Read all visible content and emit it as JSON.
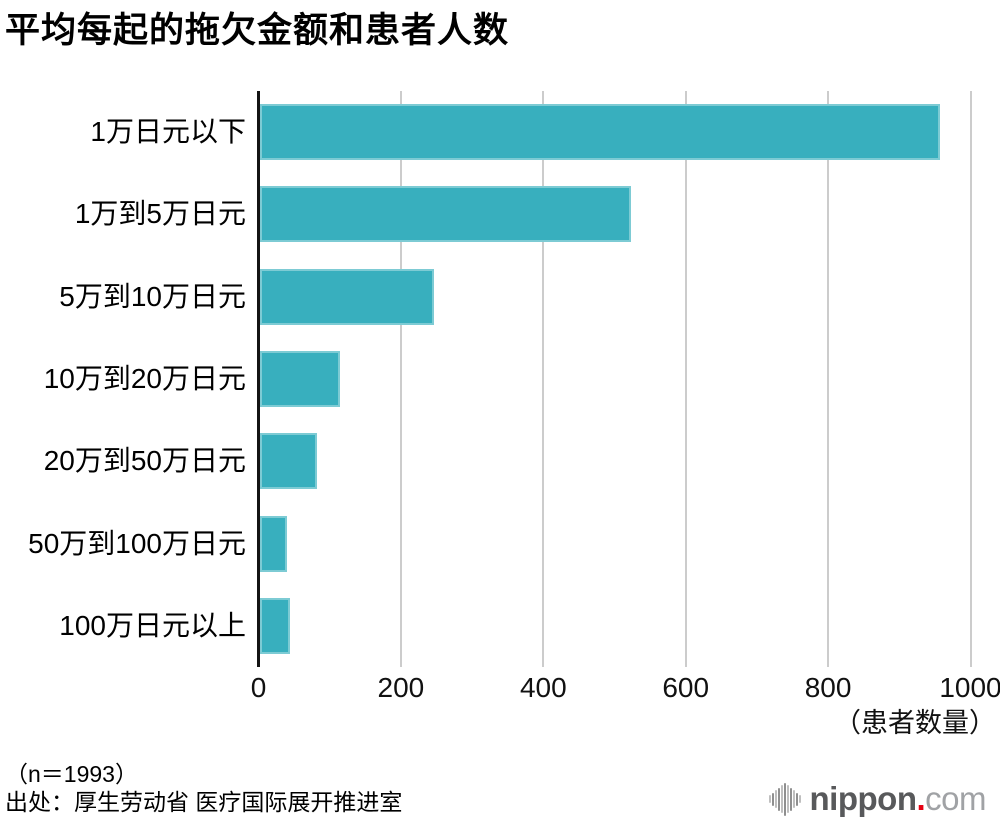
{
  "title": "平均每起的拖欠金额和患者人数",
  "chart_data": {
    "type": "bar",
    "orientation": "horizontal",
    "title": "平均每起的拖欠金额和患者人数",
    "categories": [
      "1万日元以下",
      "1万到5万日元",
      "5万到10万日元",
      "10万到20万日元",
      "20万到50万日元",
      "50万到100万日元",
      "100万日元以上"
    ],
    "values": [
      955,
      521,
      244,
      113,
      80,
      38,
      42
    ],
    "xlabel": "（患者数量）",
    "xlim": [
      0,
      1000
    ],
    "xticks": [
      0,
      200,
      400,
      600,
      800,
      1000
    ],
    "xtick_labels": [
      "0",
      "200",
      "400",
      "600",
      "800",
      "1000"
    ],
    "grid": true,
    "legend_position": "none",
    "bar_color": "#38AFBE"
  },
  "footer": {
    "sample_size": "（n＝1993）",
    "source": "出处：厚生劳动省 医疗国际展开推进室"
  },
  "logo": {
    "brand": "nippon",
    "separator": ".",
    "tld": "com",
    "icon": "soundwave-icon"
  },
  "colors": {
    "bar": "#38AFBE",
    "grid": "#cccccc",
    "axis": "#141414",
    "logo_dot": "#e60012",
    "logo_brand": "#58595b",
    "logo_tld": "#a0a2a5"
  }
}
